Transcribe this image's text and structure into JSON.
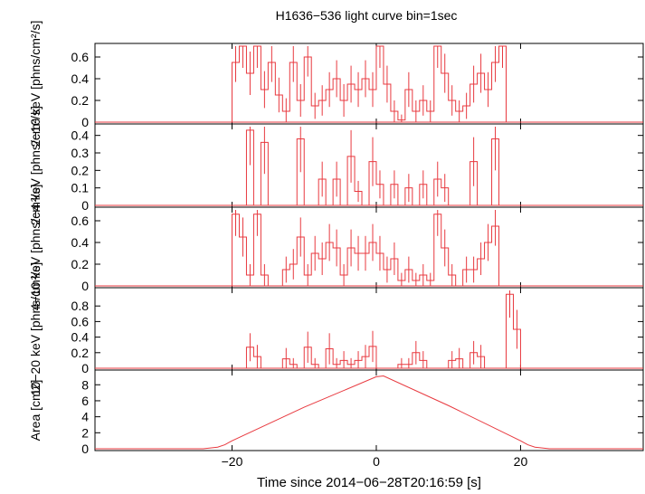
{
  "chart_data": {
    "type": "line",
    "title": "H1636−536 light curve bin=1sec",
    "xlabel": "Time since 2014−06−28T20:16:59 [s]",
    "xlim": [
      -39,
      37
    ],
    "x_ticks": [
      -20,
      0,
      20
    ],
    "x_tick_labels": [
      "−20",
      "0",
      "20"
    ],
    "line_color": "#e8393f",
    "axis_color": "#000000",
    "panels": [
      {
        "id": "p1",
        "band": "2−10 keV",
        "ylabel": "2−10 keV [phns/cm²/s]",
        "ylim": [
          0,
          0.7
        ],
        "y_ticks": [
          0,
          0.2,
          0.4,
          0.6
        ],
        "y_tick_labels": [
          "0",
          "0.2",
          "0.4",
          "0.6"
        ],
        "series": {
          "x": [
            -20,
            -19,
            -18,
            -17,
            -16,
            -15,
            -14,
            -13,
            -12,
            -11,
            -10,
            -9,
            -8,
            -7,
            -6,
            -5,
            -4,
            -3,
            -2,
            -1,
            0,
            1,
            2,
            3,
            4,
            5,
            6,
            7,
            8,
            9,
            10,
            11,
            12,
            13,
            14,
            15,
            16,
            17
          ],
          "y": [
            0.55,
            0.7,
            0.45,
            0.7,
            0.3,
            0.55,
            0.25,
            0.1,
            0.55,
            0.2,
            0.6,
            0.15,
            0.2,
            0.3,
            0.4,
            0.2,
            0.35,
            0.3,
            0.4,
            0.3,
            0.7,
            0.35,
            0.1,
            0.02,
            0.3,
            0.1,
            0.2,
            0.1,
            0.7,
            0.45,
            0.2,
            0.1,
            0.15,
            0.35,
            0.45,
            0.3,
            0.55,
            0.7
          ],
          "err": [
            0.18,
            0.2,
            0.2,
            0.2,
            0.17,
            0.18,
            0.16,
            0.12,
            0.18,
            0.15,
            0.18,
            0.12,
            0.14,
            0.16,
            0.17,
            0.15,
            0.17,
            0.16,
            0.17,
            0.16,
            0.2,
            0.17,
            0.1,
            0.05,
            0.16,
            0.1,
            0.14,
            0.1,
            0.2,
            0.18,
            0.14,
            0.1,
            0.12,
            0.17,
            0.18,
            0.16,
            0.18,
            0.2
          ]
        }
      },
      {
        "id": "p2",
        "band": "2−4 keV",
        "ylabel": "2−4 keV [phns/cm²/s]",
        "ylim": [
          0,
          0.45
        ],
        "y_ticks": [
          0,
          0.1,
          0.2,
          0.3,
          0.4
        ],
        "y_tick_labels": [
          "0",
          "0.1",
          "0.2",
          "0.3",
          "0.4"
        ],
        "series": {
          "x": [
            -18,
            -17,
            -16,
            -15,
            -14,
            -13,
            -12,
            -11,
            -10,
            -9,
            -8,
            -7,
            -6,
            -5,
            -4,
            -3,
            -2,
            -1,
            0,
            1,
            2,
            3,
            4,
            5,
            6,
            7,
            8,
            9,
            10,
            11,
            12,
            13,
            14,
            15,
            16
          ],
          "y": [
            0.43,
            0.0,
            0.36,
            0.0,
            0.0,
            0.0,
            0.0,
            0.38,
            0.0,
            0.0,
            0.15,
            0.0,
            0.15,
            0.0,
            0.28,
            0.08,
            0.0,
            0.25,
            0.12,
            0.0,
            0.12,
            0.0,
            0.1,
            0.0,
            0.12,
            0.0,
            0.15,
            0.1,
            0.0,
            0.0,
            0.0,
            0.25,
            0.0,
            0.0,
            0.38
          ],
          "err": [
            0.2,
            0.0,
            0.18,
            0.0,
            0.0,
            0.0,
            0.0,
            0.19,
            0.0,
            0.0,
            0.1,
            0.0,
            0.1,
            0.0,
            0.15,
            0.06,
            0.0,
            0.14,
            0.08,
            0.0,
            0.08,
            0.0,
            0.08,
            0.0,
            0.08,
            0.0,
            0.1,
            0.08,
            0.0,
            0.0,
            0.0,
            0.14,
            0.0,
            0.0,
            0.18
          ]
        }
      },
      {
        "id": "p3",
        "band": "4−10 keV",
        "ylabel": "4−10 keV [phns/cm²/s]",
        "ylim": [
          0,
          0.7
        ],
        "y_ticks": [
          0,
          0.2,
          0.4,
          0.6
        ],
        "y_tick_labels": [
          "0",
          "0.2",
          "0.4",
          "0.6"
        ],
        "series": {
          "x": [
            -20,
            -19,
            -18,
            -17,
            -16,
            -15,
            -14,
            -13,
            -12,
            -11,
            -10,
            -9,
            -8,
            -7,
            -6,
            -5,
            -4,
            -3,
            -2,
            -1,
            0,
            1,
            2,
            3,
            4,
            5,
            6,
            7,
            8,
            9,
            10,
            11,
            12,
            13,
            14,
            15,
            16,
            17
          ],
          "y": [
            0.66,
            0.45,
            0.1,
            0.66,
            0.1,
            0.0,
            0.0,
            0.15,
            0.2,
            0.45,
            0.1,
            0.3,
            0.25,
            0.4,
            0.35,
            0.1,
            0.35,
            0.3,
            0.3,
            0.4,
            0.3,
            0.15,
            0.25,
            0.05,
            0.15,
            0.05,
            0.1,
            0.05,
            0.66,
            0.35,
            0.1,
            0.0,
            0.15,
            0.15,
            0.25,
            0.4,
            0.55,
            0.0
          ],
          "err": [
            0.2,
            0.18,
            0.1,
            0.2,
            0.1,
            0.0,
            0.0,
            0.12,
            0.14,
            0.18,
            0.1,
            0.16,
            0.15,
            0.17,
            0.17,
            0.1,
            0.17,
            0.16,
            0.16,
            0.17,
            0.16,
            0.12,
            0.15,
            0.07,
            0.12,
            0.07,
            0.1,
            0.07,
            0.2,
            0.17,
            0.1,
            0.0,
            0.12,
            0.12,
            0.15,
            0.17,
            0.18,
            0.0
          ]
        }
      },
      {
        "id": "p4",
        "band": "10−20 keV",
        "ylabel": "10−20 keV [phns/cm²/s]",
        "ylim": [
          0,
          1.0
        ],
        "y_ticks": [
          0,
          0.2,
          0.4,
          0.6,
          0.8
        ],
        "y_tick_labels": [
          "0",
          "0.2",
          "0.4",
          "0.6",
          "0.8"
        ],
        "series": {
          "x": [
            -18,
            -17,
            -16,
            -15,
            -14,
            -13,
            -12,
            -11,
            -10,
            -9,
            -8,
            -7,
            -6,
            -5,
            -4,
            -3,
            -2,
            -1,
            0,
            1,
            2,
            3,
            4,
            5,
            6,
            7,
            8,
            9,
            10,
            11,
            12,
            13,
            14,
            15,
            16,
            17,
            18,
            19
          ],
          "y": [
            0.27,
            0.15,
            0.0,
            0.0,
            0.0,
            0.12,
            0.05,
            0.0,
            0.27,
            0.05,
            0.0,
            0.25,
            0.05,
            0.1,
            0.05,
            0.1,
            0.15,
            0.28,
            0.0,
            0.0,
            0.0,
            0.05,
            0.05,
            0.2,
            0.1,
            0.0,
            0.0,
            0.0,
            0.1,
            0.12,
            0.0,
            0.2,
            0.15,
            0.0,
            0.0,
            0.0,
            0.95,
            0.5
          ],
          "err": [
            0.18,
            0.15,
            0.0,
            0.0,
            0.0,
            0.14,
            0.08,
            0.0,
            0.2,
            0.08,
            0.0,
            0.2,
            0.08,
            0.12,
            0.08,
            0.12,
            0.15,
            0.2,
            0.0,
            0.0,
            0.0,
            0.08,
            0.08,
            0.15,
            0.12,
            0.0,
            0.0,
            0.0,
            0.12,
            0.14,
            0.0,
            0.15,
            0.15,
            0.0,
            0.0,
            0.0,
            0.3,
            0.25
          ]
        }
      },
      {
        "id": "p5",
        "band": "Area",
        "ylabel": "Area [cm2]",
        "ylim": [
          0,
          9.5
        ],
        "y_ticks": [
          0,
          2,
          4,
          6,
          8
        ],
        "y_tick_labels": [
          "0",
          "2",
          "4",
          "6",
          "8"
        ],
        "area_curve": {
          "x": [
            -39,
            -24,
            -22,
            -21,
            -20,
            -10,
            0,
            1,
            10,
            20,
            21,
            22,
            24,
            37
          ],
          "y": [
            0,
            0,
            0.2,
            0.5,
            1.0,
            5.2,
            9.0,
            9.1,
            5.4,
            1.0,
            0.5,
            0.2,
            0,
            0
          ]
        }
      }
    ]
  }
}
